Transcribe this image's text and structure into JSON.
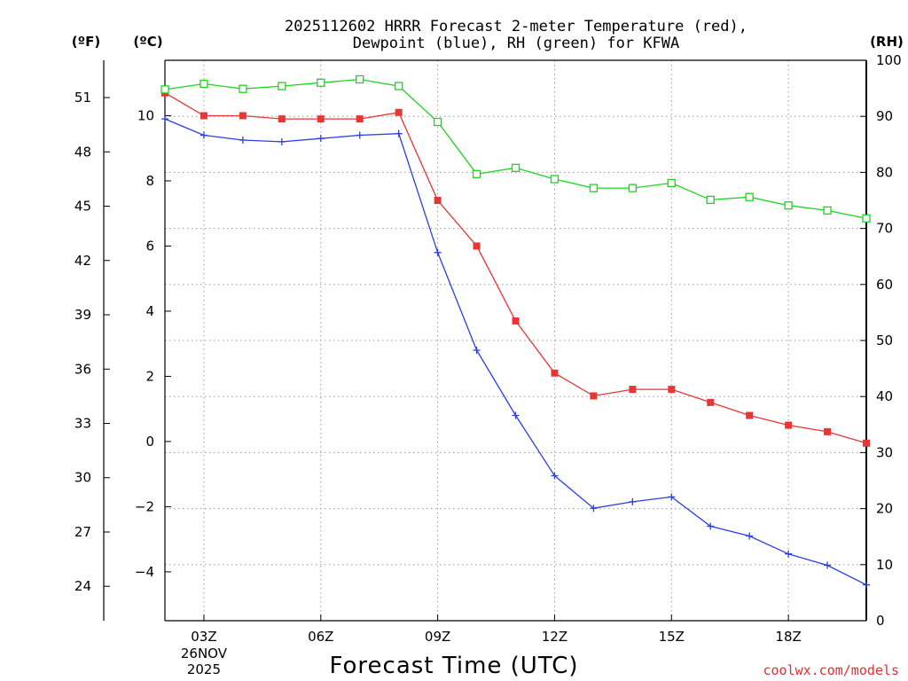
{
  "chart_data": {
    "type": "line",
    "title_line1": "2025112602 HRRR Forecast 2-meter Temperature (red),",
    "title_line2": "Dewpoint (blue), RH (green) for KFWA",
    "xlabel": "Forecast Time (UTC)",
    "credit": "coolwx.com/models",
    "x": [
      2,
      3,
      4,
      5,
      6,
      7,
      8,
      9,
      10,
      11,
      12,
      13,
      14,
      15,
      16,
      17,
      18,
      19,
      20
    ],
    "xlim": [
      2,
      20
    ],
    "x_ticks": [
      {
        "x": 3,
        "label": "03Z",
        "sub1": "26NOV",
        "sub2": "2025"
      },
      {
        "x": 6,
        "label": "06Z"
      },
      {
        "x": 9,
        "label": "09Z"
      },
      {
        "x": 12,
        "label": "12Z"
      },
      {
        "x": 15,
        "label": "15Z"
      },
      {
        "x": 18,
        "label": "18Z"
      }
    ],
    "axes": {
      "fahrenheit": {
        "unit_label": "(ºF)",
        "ticks": [
          24,
          27,
          30,
          33,
          36,
          39,
          42,
          45,
          48,
          51
        ]
      },
      "celsius": {
        "unit_label": "(ºC)",
        "ylim": [
          -5.5,
          11.7
        ],
        "ticks": [
          -4,
          -2,
          0,
          2,
          4,
          6,
          8,
          10
        ]
      },
      "rh": {
        "unit_label": "(RH)",
        "ylim": [
          0,
          100
        ],
        "ticks": [
          0,
          10,
          20,
          30,
          40,
          50,
          60,
          70,
          80,
          90,
          100
        ]
      }
    },
    "series": [
      {
        "name": "Temperature",
        "unit": "C",
        "color": "#e83535",
        "marker": "filled-square",
        "values": [
          10.7,
          10.0,
          10.0,
          9.9,
          9.9,
          9.9,
          10.1,
          7.4,
          6.0,
          3.7,
          2.1,
          1.4,
          1.6,
          1.6,
          1.2,
          0.8,
          0.5,
          0.3,
          -0.05
        ]
      },
      {
        "name": "Dewpoint",
        "unit": "C",
        "color": "#2a3ee6",
        "marker": "plus",
        "values": [
          9.9,
          9.4,
          9.25,
          9.2,
          9.3,
          9.4,
          9.45,
          5.8,
          2.8,
          0.8,
          -1.05,
          -2.05,
          -1.85,
          -1.7,
          -2.6,
          -2.9,
          -3.45,
          -3.8,
          -4.4
        ]
      },
      {
        "name": "RH",
        "unit": "%",
        "color": "#1ed41e",
        "marker": "open-square",
        "values": [
          94.8,
          95.8,
          94.9,
          95.4,
          96.0,
          96.6,
          95.4,
          89.0,
          79.7,
          80.8,
          78.8,
          77.2,
          77.2,
          78.1,
          75.1,
          75.6,
          74.1,
          73.2,
          71.8
        ]
      }
    ]
  }
}
